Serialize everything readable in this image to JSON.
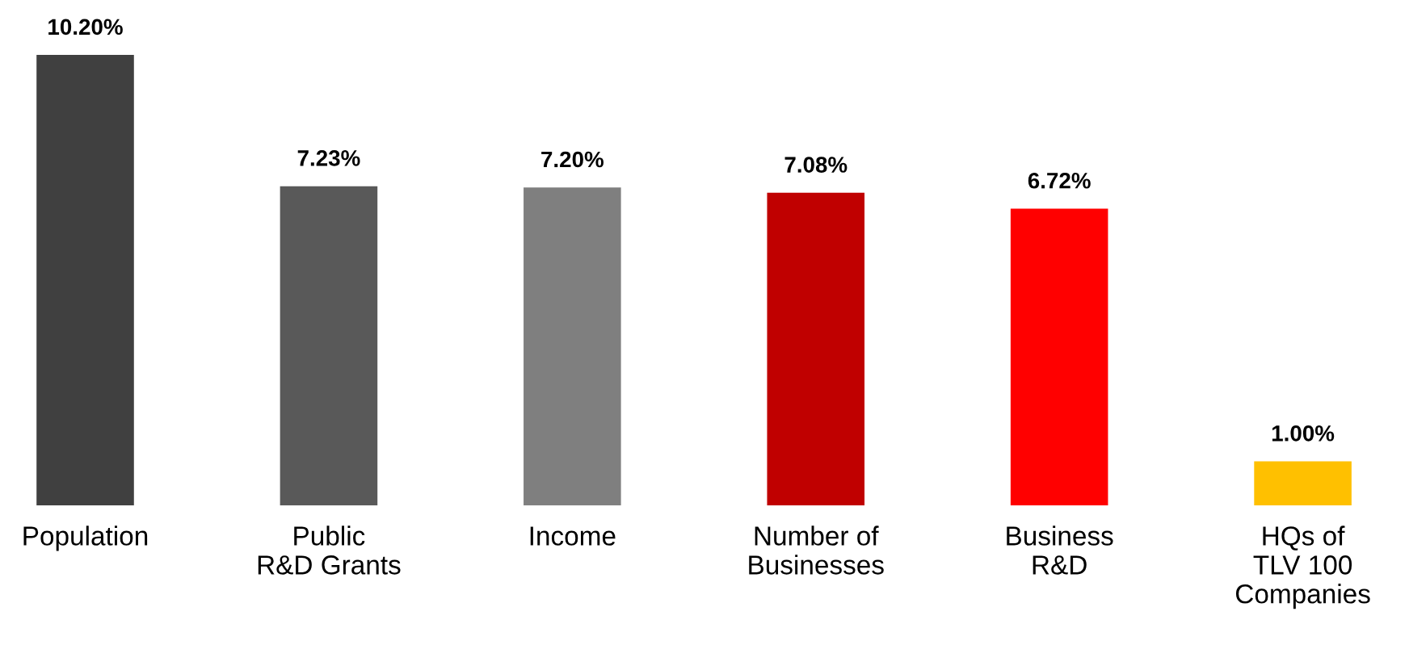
{
  "chart_data": {
    "type": "bar",
    "categories": [
      "Population",
      "Public\nR&D Grants",
      "Income",
      "Number of\nBusinesses",
      "Business\nR&D",
      "HQs of\nTLV 100\nCompanies"
    ],
    "values": [
      10.2,
      7.23,
      7.2,
      7.08,
      6.72,
      1.0
    ],
    "colors": [
      "#404040",
      "#595959",
      "#7f7f7f",
      "#c00000",
      "#ff0000",
      "#ffc000"
    ],
    "value_labels": [
      "10.20%",
      "7.23%",
      "7.20%",
      "7.08%",
      "6.72%",
      "1.00%"
    ],
    "grid": false,
    "legend": false
  }
}
